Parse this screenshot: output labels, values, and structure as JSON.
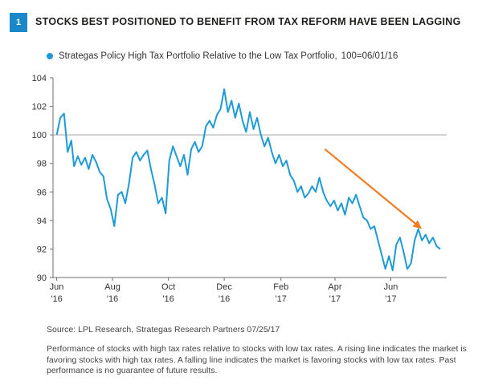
{
  "figure": {
    "number": "1",
    "title": "STOCKS BEST POSITIONED TO BENEFIT FROM TAX REFORM HAVE BEEN LAGGING"
  },
  "chart_data": {
    "type": "line",
    "series": [
      {
        "name": "Strategas Policy High Tax Portfolio Relative to the Low Tax Portfolio,",
        "color": "#1e9ad6",
        "points": [
          [
            "2016-06-01",
            100.0
          ],
          [
            "2016-06-05",
            101.2
          ],
          [
            "2016-06-09",
            101.5
          ],
          [
            "2016-06-13",
            98.8
          ],
          [
            "2016-06-17",
            99.6
          ],
          [
            "2016-06-20",
            97.8
          ],
          [
            "2016-06-24",
            98.5
          ],
          [
            "2016-06-28",
            97.9
          ],
          [
            "2016-07-02",
            98.4
          ],
          [
            "2016-07-06",
            97.6
          ],
          [
            "2016-07-10",
            98.6
          ],
          [
            "2016-07-14",
            98.1
          ],
          [
            "2016-07-18",
            97.4
          ],
          [
            "2016-07-22",
            97.1
          ],
          [
            "2016-07-26",
            95.5
          ],
          [
            "2016-07-30",
            94.8
          ],
          [
            "2016-08-03",
            93.6
          ],
          [
            "2016-08-07",
            95.8
          ],
          [
            "2016-08-11",
            96.0
          ],
          [
            "2016-08-15",
            95.2
          ],
          [
            "2016-08-19",
            96.6
          ],
          [
            "2016-08-23",
            98.4
          ],
          [
            "2016-08-27",
            98.8
          ],
          [
            "2016-08-31",
            98.2
          ],
          [
            "2016-09-04",
            98.6
          ],
          [
            "2016-09-08",
            98.9
          ],
          [
            "2016-09-12",
            97.6
          ],
          [
            "2016-09-16",
            96.5
          ],
          [
            "2016-09-20",
            95.2
          ],
          [
            "2016-09-24",
            95.6
          ],
          [
            "2016-09-28",
            94.5
          ],
          [
            "2016-10-02",
            98.2
          ],
          [
            "2016-10-06",
            99.2
          ],
          [
            "2016-10-10",
            98.5
          ],
          [
            "2016-10-14",
            97.8
          ],
          [
            "2016-10-18",
            98.6
          ],
          [
            "2016-10-22",
            97.2
          ],
          [
            "2016-10-26",
            99.0
          ],
          [
            "2016-10-30",
            99.5
          ],
          [
            "2016-11-03",
            98.8
          ],
          [
            "2016-11-07",
            99.2
          ],
          [
            "2016-11-11",
            100.6
          ],
          [
            "2016-11-15",
            101.0
          ],
          [
            "2016-11-19",
            100.5
          ],
          [
            "2016-11-23",
            101.4
          ],
          [
            "2016-11-27",
            101.8
          ],
          [
            "2016-12-01",
            103.2
          ],
          [
            "2016-12-05",
            101.6
          ],
          [
            "2016-12-09",
            102.4
          ],
          [
            "2016-12-13",
            101.2
          ],
          [
            "2016-12-17",
            102.2
          ],
          [
            "2016-12-21",
            101.0
          ],
          [
            "2016-12-25",
            100.2
          ],
          [
            "2016-12-29",
            101.6
          ],
          [
            "2017-01-02",
            100.4
          ],
          [
            "2017-01-06",
            101.2
          ],
          [
            "2017-01-10",
            100.0
          ],
          [
            "2017-01-14",
            99.2
          ],
          [
            "2017-01-18",
            99.8
          ],
          [
            "2017-01-22",
            98.8
          ],
          [
            "2017-01-26",
            98.0
          ],
          [
            "2017-01-30",
            98.6
          ],
          [
            "2017-02-03",
            97.8
          ],
          [
            "2017-02-07",
            98.2
          ],
          [
            "2017-02-11",
            97.2
          ],
          [
            "2017-02-15",
            96.8
          ],
          [
            "2017-02-19",
            96.0
          ],
          [
            "2017-02-23",
            96.4
          ],
          [
            "2017-02-27",
            95.6
          ],
          [
            "2017-03-03",
            95.9
          ],
          [
            "2017-03-07",
            96.4
          ],
          [
            "2017-03-11",
            96.0
          ],
          [
            "2017-03-15",
            97.0
          ],
          [
            "2017-03-19",
            96.0
          ],
          [
            "2017-03-23",
            95.4
          ],
          [
            "2017-03-27",
            95.0
          ],
          [
            "2017-03-31",
            95.4
          ],
          [
            "2017-04-04",
            94.7
          ],
          [
            "2017-04-08",
            95.2
          ],
          [
            "2017-04-12",
            94.4
          ],
          [
            "2017-04-16",
            95.6
          ],
          [
            "2017-04-20",
            95.2
          ],
          [
            "2017-04-24",
            95.8
          ],
          [
            "2017-04-28",
            95.0
          ],
          [
            "2017-05-02",
            94.2
          ],
          [
            "2017-05-06",
            94.0
          ],
          [
            "2017-05-10",
            93.4
          ],
          [
            "2017-05-14",
            93.6
          ],
          [
            "2017-05-18",
            92.6
          ],
          [
            "2017-05-22",
            91.6
          ],
          [
            "2017-05-26",
            90.6
          ],
          [
            "2017-05-30",
            91.5
          ],
          [
            "2017-06-03",
            90.5
          ],
          [
            "2017-06-07",
            92.3
          ],
          [
            "2017-06-11",
            92.8
          ],
          [
            "2017-06-15",
            91.8
          ],
          [
            "2017-06-19",
            90.6
          ],
          [
            "2017-06-23",
            91.0
          ],
          [
            "2017-06-27",
            92.6
          ],
          [
            "2017-07-01",
            93.4
          ],
          [
            "2017-07-05",
            92.6
          ],
          [
            "2017-07-09",
            93.0
          ],
          [
            "2017-07-13",
            92.4
          ],
          [
            "2017-07-17",
            92.8
          ],
          [
            "2017-07-21",
            92.2
          ],
          [
            "2017-07-25",
            92.0
          ]
        ]
      }
    ],
    "base_note": "100=06/01/16",
    "x_ticks": [
      {
        "date": "2016-06-01",
        "label": "Jun\n'16"
      },
      {
        "date": "2016-08-01",
        "label": "Aug\n'16"
      },
      {
        "date": "2016-10-01",
        "label": "Oct\n'16"
      },
      {
        "date": "2016-12-01",
        "label": "Dec\n'16"
      },
      {
        "date": "2017-02-01",
        "label": "Feb\n'17"
      },
      {
        "date": "2017-04-01",
        "label": "Apr\n'17"
      },
      {
        "date": "2017-06-01",
        "label": "Jun\n'17"
      }
    ],
    "xlim": [
      "2016-05-28",
      "2017-08-01"
    ],
    "y_ticks": [
      90,
      92,
      94,
      96,
      98,
      100,
      102,
      104
    ],
    "ylim": [
      90,
      104
    ],
    "reference_line": 100,
    "grid": false,
    "legend_placement": "top-left",
    "annotation": {
      "type": "arrow",
      "color": "#f47b20",
      "from": [
        "2017-03-21",
        99.0
      ],
      "to": [
        "2017-07-05",
        93.4
      ]
    }
  },
  "source": "Source: LPL Research, Strategas Research Partners    07/25/17",
  "footnote": "Performance of stocks with high tax rates relative to stocks with low tax rates. A rising line indicates the market is favoring stocks with high tax rates. A falling line indicates the market is favoring stocks with low tax rates. Past performance is no guarantee of future results."
}
